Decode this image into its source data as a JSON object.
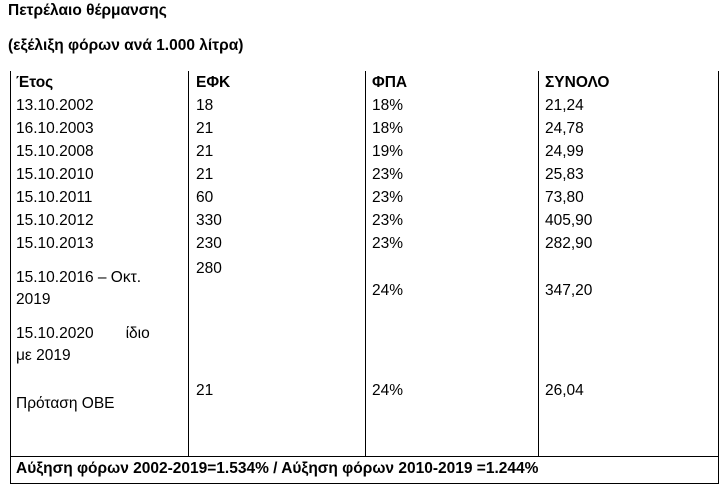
{
  "heading": {
    "title": "Πετρέλαιο θέρμανσης",
    "subtitle": "(εξέλιξη φόρων ανά 1.000 λίτρα)"
  },
  "table": {
    "columns": [
      "Έτος",
      "ΕΦΚ",
      "ΦΠΑ",
      "ΣΥΝΟΛΟ"
    ],
    "rows": [
      {
        "year": "13.10.2002",
        "efk": "18",
        "fpa": "18%",
        "total": "21,24"
      },
      {
        "year": "16.10.2003",
        "efk": "21",
        "fpa": "18%",
        "total": "24,78"
      },
      {
        "year": "15.10.2008",
        "efk": "21",
        "fpa": "19%",
        "total": "24,99"
      },
      {
        "year": "15.10.2010",
        "efk": "21",
        "fpa": "23%",
        "total": "25,83"
      },
      {
        "year": "15.10.2011",
        "efk": "60",
        "fpa": "23%",
        "total": "73,80"
      },
      {
        "year": "15.10.2012",
        "efk": "330",
        "fpa": "23%",
        "total": "405,90"
      },
      {
        "year": "15.10.2013",
        "efk": "230",
        "fpa": "23%",
        "total": "282,90"
      }
    ],
    "row_2016": {
      "year_line1": "15.10.2016 – Οκτ.",
      "year_line2": "2019",
      "efk": "280",
      "fpa": "24%",
      "total": "347,20"
    },
    "row_2020": {
      "year_line1_a": "15.10.2020",
      "year_line1_b": "ίδιο",
      "year_line2": "με 2019"
    },
    "row_proposal": {
      "label": "Πρόταση ΟΒΕ",
      "efk": "21",
      "fpa": "24%",
      "total": "26,04"
    },
    "footer": "Αύξηση φόρων 2002-2019=1.534% / Αύξηση φόρων 2010-2019 =1.244%"
  }
}
